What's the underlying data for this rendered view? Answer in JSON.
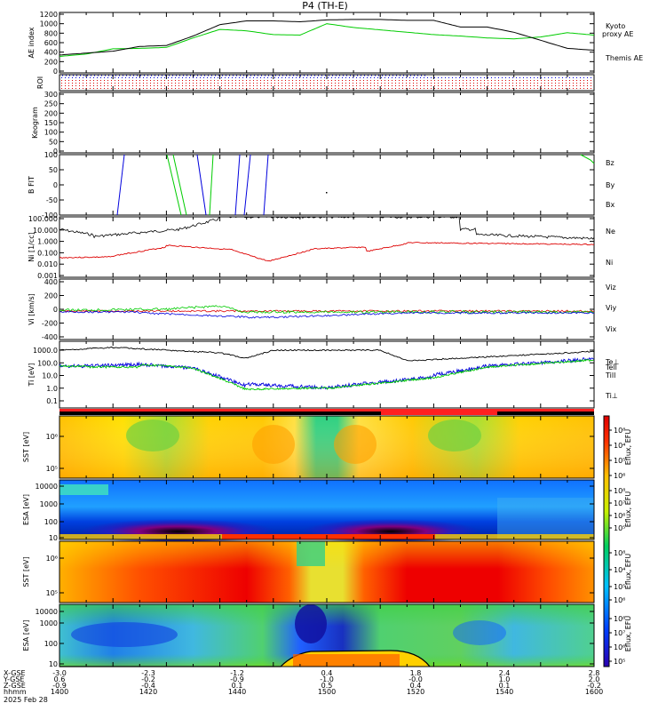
{
  "title": "P4 (TH-E)",
  "footer": {
    "row_labels": [
      "X-GSE",
      "Y-GSE",
      "Z-GSE",
      "hhmm",
      "2025 Feb 28"
    ],
    "columns": [
      {
        "x": "-3.0",
        "y": "0.6",
        "z": "-0.9",
        "t": "1400"
      },
      {
        "x": "-2.3",
        "y": "-0.2",
        "z": "-0.4",
        "t": "1420"
      },
      {
        "x": "-1.2",
        "y": "-0.9",
        "z": "0.1",
        "t": "1440"
      },
      {
        "x": "0.4",
        "y": "-1.0",
        "z": "0.5",
        "t": "1500"
      },
      {
        "x": "1.8",
        "y": "-0.0",
        "z": "0.4",
        "t": "1520"
      },
      {
        "x": "2.4",
        "y": "1.0",
        "z": "0.1",
        "t": "1540"
      },
      {
        "x": "2.8",
        "y": "2.0",
        "z": "-0.2",
        "t": "1600"
      }
    ]
  },
  "colorbar_label": "Eflux, EFU",
  "chart_data": [
    {
      "type": "line",
      "panel": "AE index",
      "ylabel": "AE index",
      "ylim": [
        0,
        1200
      ],
      "yticks": [
        "0",
        "200",
        "400",
        "600",
        "800",
        "1000",
        "1200"
      ],
      "x": [
        1400,
        1410,
        1420,
        1430,
        1440,
        1450,
        1460,
        1470,
        1480,
        1490,
        1500,
        1510,
        1520,
        1530,
        1540,
        1550,
        1560,
        1570,
        1580,
        1590,
        1600
      ],
      "series": [
        {
          "name": "Kyoto",
          "name2": "proxy AE",
          "color": "#00cc00",
          "values": [
            310,
            360,
            470,
            480,
            500,
            700,
            880,
            850,
            770,
            760,
            1000,
            920,
            870,
            820,
            770,
            740,
            700,
            680,
            720,
            810,
            760
          ]
        },
        {
          "name": "Themis AE",
          "color": "#000000",
          "values": [
            340,
            380,
            420,
            520,
            540,
            740,
            980,
            1060,
            1060,
            1040,
            1080,
            1090,
            1090,
            1070,
            1070,
            930,
            930,
            820,
            650,
            480,
            440
          ]
        }
      ]
    },
    {
      "type": "table",
      "panel": "ROI",
      "ylabel": "ROI"
    },
    {
      "type": "heatmap",
      "panel": "Keogram",
      "ylabel": "Keogram",
      "yticks": [
        "0",
        "50",
        "100",
        "150",
        "200",
        "250",
        "300"
      ]
    },
    {
      "type": "line",
      "panel": "B FIT GSE",
      "ylabel": "B FIT GSE [nT]",
      "ylim": [
        -100,
        100
      ],
      "yticks": [
        "-100",
        "-50",
        "0",
        "50",
        "100"
      ],
      "series": [
        {
          "name": "Bz",
          "color": "#dd0000"
        },
        {
          "name": "By",
          "color": "#00cc00"
        },
        {
          "name": "Bx",
          "color": "#0000dd"
        }
      ]
    },
    {
      "type": "line",
      "panel": "Ni",
      "ylabel": "Ni [1/cc]",
      "ylog": true,
      "yticks": [
        "0.001",
        "0.010",
        "0.100",
        "1.000",
        "10.000",
        "100.000"
      ],
      "series": [
        {
          "name": "Ne",
          "color": "#dd0000"
        },
        {
          "name": "Ni",
          "color": "#000000"
        }
      ]
    },
    {
      "type": "line",
      "panel": "Vi",
      "ylabel": "Vi [km/s]",
      "ylim": [
        -500,
        500
      ],
      "yticks": [
        "-400",
        "-200",
        "0",
        "200",
        "400"
      ],
      "series": [
        {
          "name": "Viz",
          "color": "#dd0000"
        },
        {
          "name": "Viy",
          "color": "#00cc00"
        },
        {
          "name": "Vix",
          "color": "#0000dd"
        }
      ]
    },
    {
      "type": "line",
      "panel": "Ti",
      "ylabel": "Ti [eV]",
      "ylog": true,
      "yticks": [
        "0.1",
        "1.0",
        "10.0",
        "100.0",
        "1000.0"
      ],
      "series": [
        {
          "name": "Tell",
          "color": "#000000"
        },
        {
          "name": "Te⊥",
          "color": "#dd0000"
        },
        {
          "name": "Till",
          "color": "#00cc00"
        },
        {
          "name": "Ti⊥",
          "color": "#0000dd"
        }
      ]
    },
    {
      "type": "heatmap",
      "panel": "SST",
      "ylabel": "SST [eV]",
      "yticks": [
        "10⁵",
        "10⁶"
      ]
    },
    {
      "type": "heatmap",
      "panel": "ESA",
      "ylabel": "ESA [eV]",
      "yticks": [
        "10",
        "100",
        "1000",
        "10000"
      ]
    },
    {
      "type": "heatmap",
      "panel": "SST",
      "ylabel": "SST [eV]",
      "yticks": [
        "10⁵",
        "10⁶"
      ]
    },
    {
      "type": "heatmap",
      "panel": "ESA",
      "ylabel": "ESA [eV]",
      "yticks": [
        "10",
        "100",
        "1000",
        "10000"
      ]
    }
  ]
}
